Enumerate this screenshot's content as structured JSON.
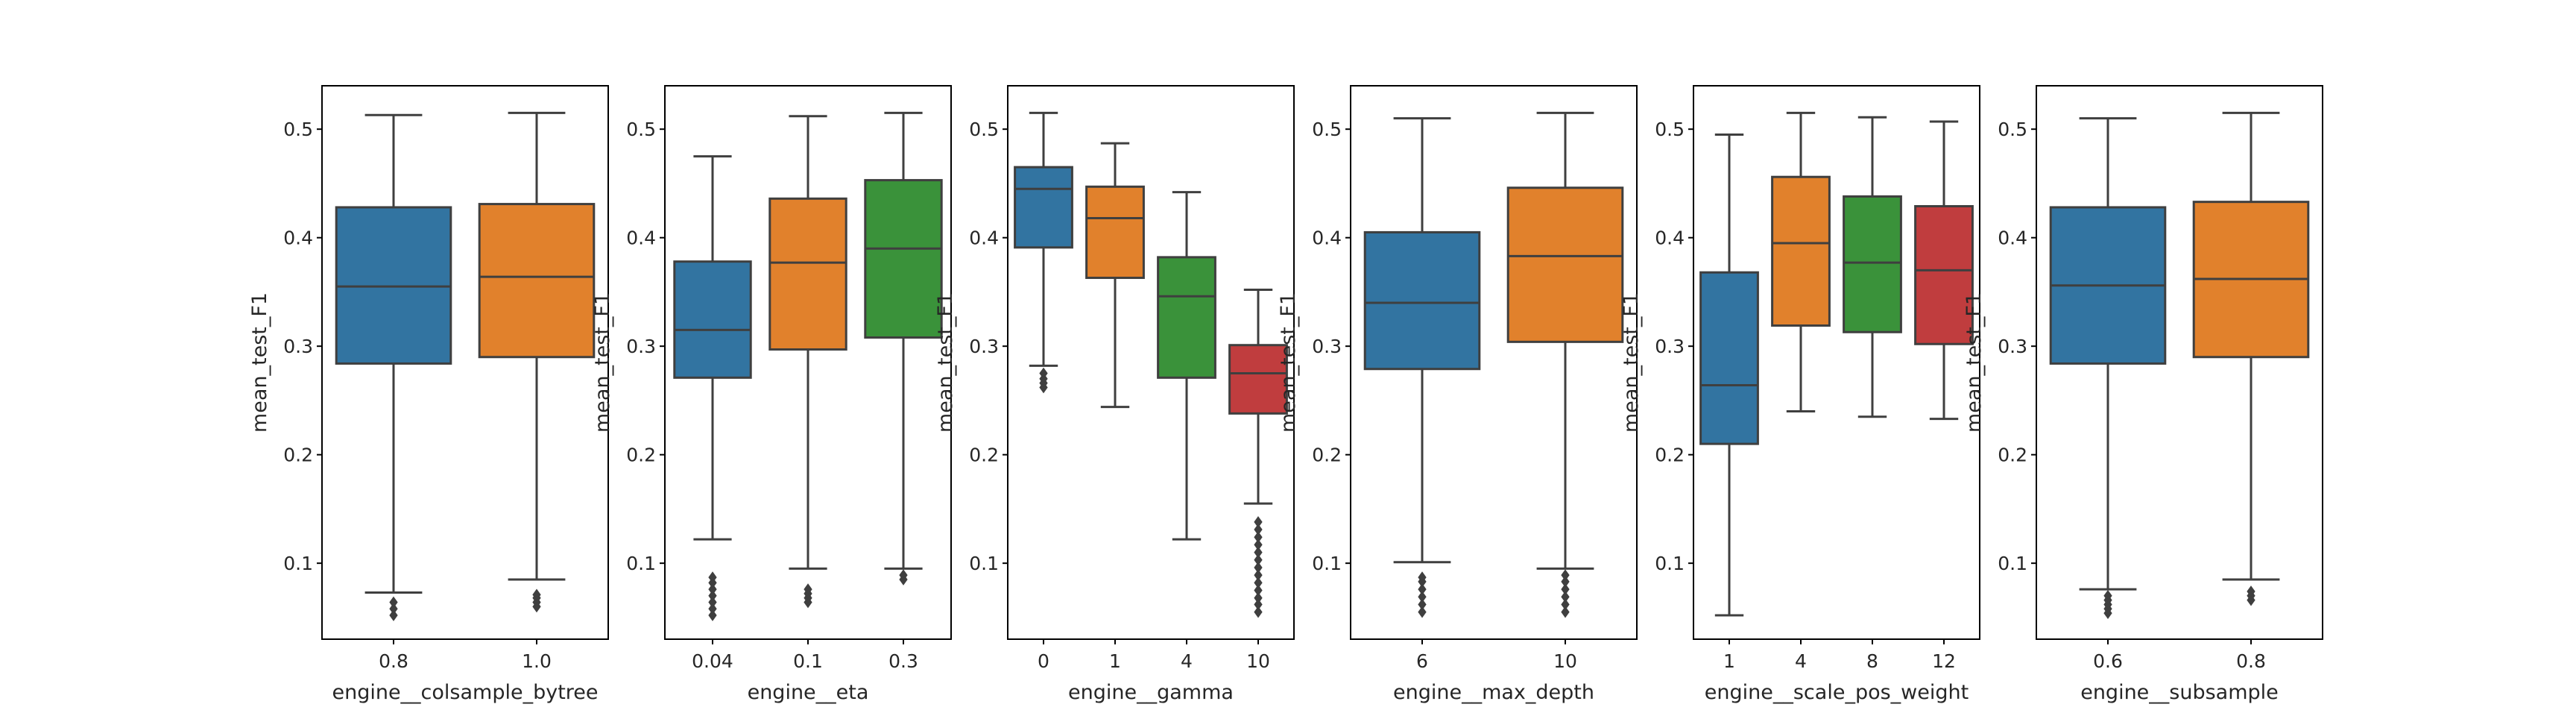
{
  "chart_data": [
    {
      "type": "box",
      "xlabel": "engine__colsample_bytree",
      "ylabel": "mean_test_F1",
      "ylim": [
        0.03,
        0.54
      ],
      "yticks": [
        "0.1",
        "0.2",
        "0.3",
        "0.4",
        "0.5"
      ],
      "categories": [
        "0.8",
        "1.0"
      ],
      "boxes": [
        {
          "whislo": 0.073,
          "q1": 0.284,
          "med": 0.355,
          "q3": 0.428,
          "whishi": 0.513,
          "fliers": [
            0.052,
            0.058,
            0.064
          ],
          "color": "#3274a1"
        },
        {
          "whislo": 0.085,
          "q1": 0.29,
          "med": 0.364,
          "q3": 0.431,
          "whishi": 0.515,
          "fliers": [
            0.06,
            0.064,
            0.068,
            0.071
          ],
          "color": "#e1812c"
        }
      ]
    },
    {
      "type": "box",
      "xlabel": "engine__eta",
      "ylabel": "mean_test_F1",
      "ylim": [
        0.03,
        0.54
      ],
      "yticks": [
        "0.1",
        "0.2",
        "0.3",
        "0.4",
        "0.5"
      ],
      "categories": [
        "0.04",
        "0.1",
        "0.3"
      ],
      "boxes": [
        {
          "whislo": 0.122,
          "q1": 0.271,
          "med": 0.315,
          "q3": 0.378,
          "whishi": 0.475,
          "fliers": [
            0.052,
            0.058,
            0.064,
            0.07,
            0.076,
            0.082,
            0.087
          ],
          "color": "#3274a1"
        },
        {
          "whislo": 0.095,
          "q1": 0.297,
          "med": 0.377,
          "q3": 0.436,
          "whishi": 0.512,
          "fliers": [
            0.064,
            0.068,
            0.072,
            0.076
          ],
          "color": "#e1812c"
        },
        {
          "whislo": 0.095,
          "q1": 0.308,
          "med": 0.39,
          "q3": 0.453,
          "whishi": 0.515,
          "fliers": [
            0.085,
            0.089
          ],
          "color": "#3a923a"
        }
      ]
    },
    {
      "type": "box",
      "xlabel": "engine__gamma",
      "ylabel": "mean_test_F1",
      "ylim": [
        0.03,
        0.54
      ],
      "yticks": [
        "0.1",
        "0.2",
        "0.3",
        "0.4",
        "0.5"
      ],
      "categories": [
        "0",
        "1",
        "4",
        "10"
      ],
      "boxes": [
        {
          "whislo": 0.282,
          "q1": 0.391,
          "med": 0.445,
          "q3": 0.465,
          "whishi": 0.515,
          "fliers": [
            0.262,
            0.266,
            0.27,
            0.275
          ],
          "color": "#3274a1"
        },
        {
          "whislo": 0.244,
          "q1": 0.363,
          "med": 0.418,
          "q3": 0.447,
          "whishi": 0.487,
          "fliers": [],
          "color": "#e1812c"
        },
        {
          "whislo": 0.122,
          "q1": 0.271,
          "med": 0.346,
          "q3": 0.382,
          "whishi": 0.442,
          "fliers": [],
          "color": "#3a923a"
        },
        {
          "whislo": 0.155,
          "q1": 0.238,
          "med": 0.275,
          "q3": 0.301,
          "whishi": 0.352,
          "fliers": [
            0.055,
            0.062,
            0.068,
            0.075,
            0.082,
            0.089,
            0.096,
            0.103,
            0.11,
            0.117,
            0.124,
            0.131,
            0.138
          ],
          "color": "#c03d3e"
        }
      ]
    },
    {
      "type": "box",
      "xlabel": "engine__max_depth",
      "ylabel": "mean_test_F1",
      "ylim": [
        0.03,
        0.54
      ],
      "yticks": [
        "0.1",
        "0.2",
        "0.3",
        "0.4",
        "0.5"
      ],
      "categories": [
        "6",
        "10"
      ],
      "boxes": [
        {
          "whislo": 0.101,
          "q1": 0.279,
          "med": 0.34,
          "q3": 0.405,
          "whishi": 0.51,
          "fliers": [
            0.055,
            0.062,
            0.069,
            0.076,
            0.083,
            0.087
          ],
          "color": "#3274a1"
        },
        {
          "whislo": 0.095,
          "q1": 0.304,
          "med": 0.383,
          "q3": 0.446,
          "whishi": 0.515,
          "fliers": [
            0.055,
            0.062,
            0.069,
            0.076,
            0.083,
            0.089
          ],
          "color": "#e1812c"
        }
      ]
    },
    {
      "type": "box",
      "xlabel": "engine__scale_pos_weight",
      "ylabel": "mean_test_F1",
      "ylim": [
        0.03,
        0.54
      ],
      "yticks": [
        "0.1",
        "0.2",
        "0.3",
        "0.4",
        "0.5"
      ],
      "categories": [
        "1",
        "4",
        "8",
        "12"
      ],
      "boxes": [
        {
          "whislo": 0.052,
          "q1": 0.21,
          "med": 0.264,
          "q3": 0.368,
          "whishi": 0.495,
          "fliers": [],
          "color": "#3274a1"
        },
        {
          "whislo": 0.24,
          "q1": 0.319,
          "med": 0.395,
          "q3": 0.456,
          "whishi": 0.515,
          "fliers": [],
          "color": "#e1812c"
        },
        {
          "whislo": 0.235,
          "q1": 0.313,
          "med": 0.377,
          "q3": 0.438,
          "whishi": 0.511,
          "fliers": [],
          "color": "#3a923a"
        },
        {
          "whislo": 0.233,
          "q1": 0.302,
          "med": 0.37,
          "q3": 0.429,
          "whishi": 0.507,
          "fliers": [],
          "color": "#c03d3e"
        }
      ]
    },
    {
      "type": "box",
      "xlabel": "engine__subsample",
      "ylabel": "mean_test_F1",
      "ylim": [
        0.03,
        0.54
      ],
      "yticks": [
        "0.1",
        "0.2",
        "0.3",
        "0.4",
        "0.5"
      ],
      "categories": [
        "0.6",
        "0.8"
      ],
      "boxes": [
        {
          "whislo": 0.076,
          "q1": 0.284,
          "med": 0.356,
          "q3": 0.428,
          "whishi": 0.51,
          "fliers": [
            0.054,
            0.058,
            0.062,
            0.066,
            0.07
          ],
          "color": "#3274a1"
        },
        {
          "whislo": 0.085,
          "q1": 0.29,
          "med": 0.362,
          "q3": 0.433,
          "whishi": 0.515,
          "fliers": [
            0.066,
            0.07,
            0.074
          ],
          "color": "#e1812c"
        }
      ]
    }
  ]
}
